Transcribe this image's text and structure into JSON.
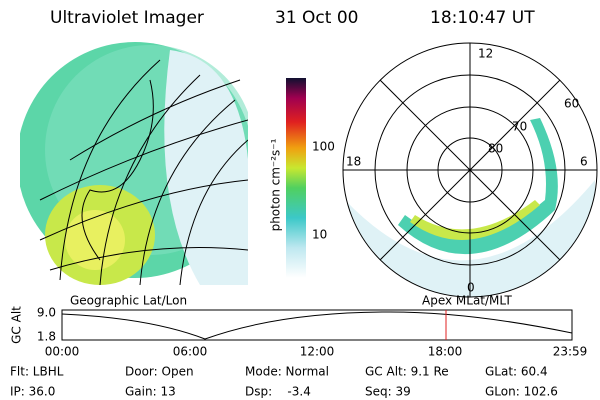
{
  "header": {
    "instrument": "Ultraviolet Imager",
    "date": "31 Oct 00",
    "time": "18:10:47 UT"
  },
  "colorbar": {
    "label": "photon cm⁻²s⁻¹",
    "ticks": [
      "100",
      "10"
    ]
  },
  "polar": {
    "mlt_labels": [
      "12",
      "18",
      "6",
      "0"
    ],
    "lat_labels": [
      "60",
      "70",
      "80"
    ]
  },
  "plot": {
    "left_title": "Geographic Lat/Lon",
    "right_title": "Apex MLat/MLT",
    "y_label": "GC Alt",
    "y_ticks": [
      "9.0",
      "1.8"
    ],
    "x_ticks": [
      "00:00",
      "06:00",
      "12:00",
      "18:00",
      "23:59"
    ]
  },
  "info": {
    "rows": [
      [
        "Flt: LBHL",
        "Door: Open",
        "Mode: Normal",
        "GC Alt: 9.1 Re",
        "GLat: 60.4"
      ],
      [
        "IP: 36.0",
        "Gain: 13",
        "Dsp:    -3.4",
        "Seq: 39",
        "GLon: 102.6"
      ]
    ]
  }
}
